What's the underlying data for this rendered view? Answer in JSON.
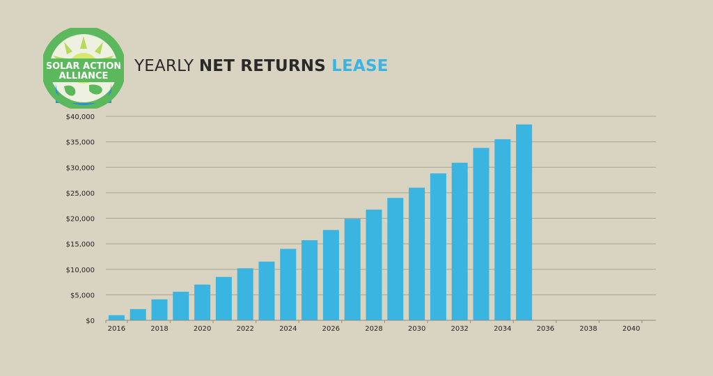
{
  "logo": {
    "line1": "SOLAR ACTION",
    "line2": "ALLIANCE",
    "colors": {
      "ring": "#5cb85c",
      "sun": "#b7d95a",
      "globe": "#2e8fd6",
      "land": "#5cb85c"
    }
  },
  "title": {
    "part1": "YEARLY ",
    "part2": "NET RETURNS ",
    "part3": "LEASE",
    "accent_color": "#3ab4e0"
  },
  "chart_data": {
    "type": "bar",
    "title": "YEARLY NET RETURNS LEASE",
    "xlabel": "",
    "ylabel": "",
    "ylim": [
      0,
      40000
    ],
    "y_ticks": [
      "$0",
      "$5,000",
      "$10,000",
      "$15,000",
      "$20,000",
      "$25,000",
      "$30,000",
      "$35,000",
      "$40,000"
    ],
    "x_ticks": [
      "2016",
      "2018",
      "2020",
      "2022",
      "2024",
      "2026",
      "2028",
      "2030",
      "2032",
      "2034",
      "2036",
      "2038",
      "2040"
    ],
    "categories": [
      "2016",
      "2017",
      "2018",
      "2019",
      "2020",
      "2021",
      "2022",
      "2023",
      "2024",
      "2025",
      "2026",
      "2027",
      "2028",
      "2029",
      "2030",
      "2031",
      "2032",
      "2033",
      "2034",
      "2035",
      "2036",
      "2037",
      "2038",
      "2039",
      "2040"
    ],
    "values": [
      1000,
      2200,
      4100,
      5600,
      7000,
      8500,
      10200,
      11500,
      14000,
      15700,
      17700,
      19900,
      21700,
      24000,
      26000,
      28800,
      30900,
      33800,
      35500,
      38400,
      null,
      null,
      null,
      null,
      null
    ],
    "grid": true,
    "bar_color": "#3ab4e0"
  }
}
